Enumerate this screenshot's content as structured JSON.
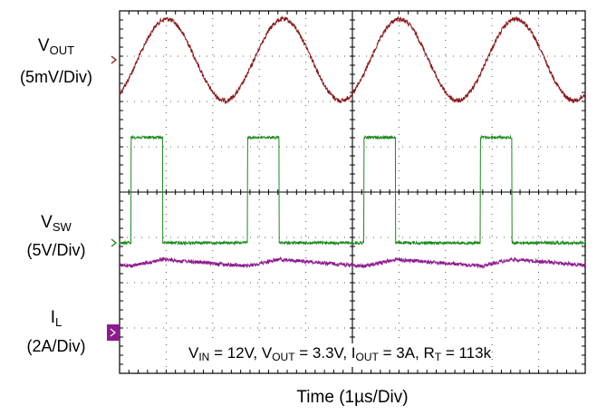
{
  "chart_data": {
    "type": "line",
    "title": "",
    "xlabel": "Time (1µs/Div)",
    "ylabel": "",
    "grid": true,
    "divisions": {
      "x": 10,
      "y": 8
    },
    "x_range_us": [
      0,
      10
    ],
    "channels": [
      {
        "name_main": "V",
        "name_sub": "OUT",
        "scale": "(5mV/Div)",
        "color": "#8b1a1a",
        "marker_color": "#8b1a1a",
        "marker_style": "small-arrow",
        "waveform": "sine",
        "period_us": 2.5,
        "amplitude_mV_pp": 10,
        "phase_us": 0.0
      },
      {
        "name_main": "V",
        "name_sub": "SW",
        "scale": "(5V/Div)",
        "color": "#1c8a1c",
        "marker_color": "#1c8a1c",
        "marker_style": "small-arrow",
        "waveform": "square",
        "period_us": 2.5,
        "high_V": 12,
        "low_V": 0,
        "duty": 0.27,
        "pulse_starts_us": [
          0.25,
          2.75,
          5.25,
          7.75
        ]
      },
      {
        "name_main": "I",
        "name_sub": "L",
        "scale": "(2A/Div)",
        "color": "#8e1a8e",
        "marker_color": "#8e1a8e",
        "marker_style": "box-arrow",
        "waveform": "triangle",
        "period_us": 2.5,
        "average_A": 3,
        "ripple_A_pp": 0.4
      }
    ],
    "conditions": [
      {
        "main": "V",
        "sub": "IN",
        "rest": " = 12V, "
      },
      {
        "main": "V",
        "sub": "OUT",
        "rest": " = 3.3V, "
      },
      {
        "main": "I",
        "sub": "OUT",
        "rest": " = 3A, "
      },
      {
        "main": "R",
        "sub": "T",
        "rest": " = 113k"
      }
    ]
  }
}
